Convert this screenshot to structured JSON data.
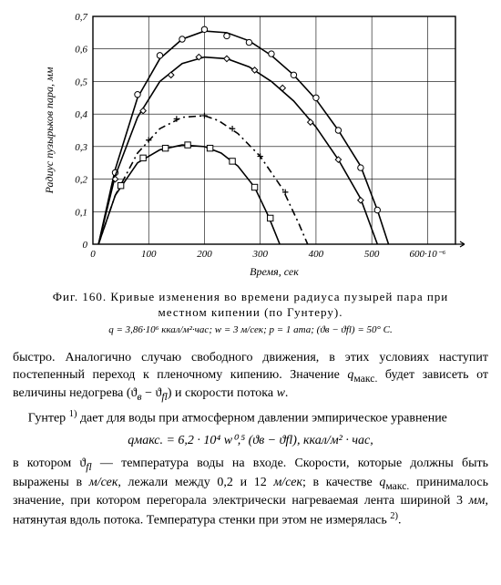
{
  "chart": {
    "type": "line",
    "background_color": "#ffffff",
    "axis_color": "#000000",
    "grid_color": "#000000",
    "series_color": "#000000",
    "marker_color": "#ffffff",
    "marker_stroke": "#000000",
    "line_width": 1.6,
    "marker_radius": 3.2,
    "x": {
      "label": "Время, сек",
      "min": 0,
      "max": 650,
      "ticks": [
        0,
        100,
        200,
        300,
        400,
        500,
        600
      ],
      "tick_labels": [
        "0",
        "100",
        "200",
        "300",
        "400",
        "500",
        "600·10⁻⁶"
      ]
    },
    "y": {
      "label": "Радиус пузырьков пара, мм",
      "min": 0,
      "max": 0.7,
      "ticks": [
        0,
        0.1,
        0.2,
        0.3,
        0.4,
        0.5,
        0.6,
        0.7
      ],
      "tick_labels": [
        "0",
        "0,1",
        "0,2",
        "0,3",
        "0,4",
        "0,5",
        "0,6",
        "0,7"
      ]
    },
    "series": [
      {
        "name": "curve-1",
        "style": "solid",
        "marker": "circle",
        "points": [
          [
            10,
            0.0
          ],
          [
            40,
            0.23
          ],
          [
            80,
            0.45
          ],
          [
            120,
            0.57
          ],
          [
            160,
            0.63
          ],
          [
            200,
            0.655
          ],
          [
            240,
            0.65
          ],
          [
            280,
            0.625
          ],
          [
            320,
            0.58
          ],
          [
            360,
            0.52
          ],
          [
            400,
            0.445
          ],
          [
            440,
            0.35
          ],
          [
            480,
            0.24
          ],
          [
            510,
            0.105
          ],
          [
            530,
            0.0
          ]
        ],
        "markers": [
          [
            40,
            0.22
          ],
          [
            80,
            0.46
          ],
          [
            120,
            0.58
          ],
          [
            160,
            0.63
          ],
          [
            200,
            0.66
          ],
          [
            240,
            0.64
          ],
          [
            280,
            0.62
          ],
          [
            320,
            0.585
          ],
          [
            360,
            0.52
          ],
          [
            400,
            0.45
          ],
          [
            440,
            0.35
          ],
          [
            480,
            0.235
          ],
          [
            510,
            0.105
          ]
        ]
      },
      {
        "name": "curve-2",
        "style": "solid",
        "marker": "diamond",
        "points": [
          [
            10,
            0.0
          ],
          [
            40,
            0.21
          ],
          [
            80,
            0.39
          ],
          [
            120,
            0.5
          ],
          [
            160,
            0.555
          ],
          [
            200,
            0.575
          ],
          [
            240,
            0.57
          ],
          [
            280,
            0.545
          ],
          [
            320,
            0.5
          ],
          [
            360,
            0.44
          ],
          [
            400,
            0.36
          ],
          [
            440,
            0.26
          ],
          [
            480,
            0.14
          ],
          [
            510,
            0.0
          ]
        ],
        "markers": [
          [
            40,
            0.2
          ],
          [
            90,
            0.41
          ],
          [
            140,
            0.52
          ],
          [
            190,
            0.575
          ],
          [
            240,
            0.57
          ],
          [
            290,
            0.535
          ],
          [
            340,
            0.48
          ],
          [
            390,
            0.375
          ],
          [
            440,
            0.26
          ],
          [
            480,
            0.135
          ]
        ]
      },
      {
        "name": "curve-3",
        "style": "dashdot",
        "marker": "plus",
        "points": [
          [
            10,
            0.0
          ],
          [
            40,
            0.15
          ],
          [
            80,
            0.28
          ],
          [
            120,
            0.355
          ],
          [
            160,
            0.39
          ],
          [
            200,
            0.395
          ],
          [
            225,
            0.38
          ],
          [
            260,
            0.34
          ],
          [
            300,
            0.27
          ],
          [
            340,
            0.17
          ],
          [
            370,
            0.06
          ],
          [
            385,
            0.0
          ]
        ],
        "markers": [
          [
            50,
            0.18
          ],
          [
            100,
            0.32
          ],
          [
            150,
            0.385
          ],
          [
            200,
            0.395
          ],
          [
            250,
            0.355
          ],
          [
            300,
            0.27
          ],
          [
            345,
            0.16
          ]
        ]
      },
      {
        "name": "curve-4",
        "style": "solid",
        "marker": "square",
        "points": [
          [
            10,
            0.0
          ],
          [
            40,
            0.15
          ],
          [
            80,
            0.25
          ],
          [
            120,
            0.29
          ],
          [
            160,
            0.305
          ],
          [
            200,
            0.3
          ],
          [
            230,
            0.28
          ],
          [
            260,
            0.24
          ],
          [
            290,
            0.175
          ],
          [
            315,
            0.085
          ],
          [
            335,
            0.0
          ]
        ],
        "markers": [
          [
            50,
            0.18
          ],
          [
            90,
            0.265
          ],
          [
            130,
            0.295
          ],
          [
            170,
            0.305
          ],
          [
            210,
            0.295
          ],
          [
            250,
            0.255
          ],
          [
            290,
            0.175
          ],
          [
            318,
            0.08
          ]
        ]
      }
    ]
  },
  "caption": {
    "line1": "Фиг. 160. Кривые изменения во времени радиуса пузырей пара при местном кипении (по Гунтеру).",
    "line2": "q = 3,86·10⁶ ккал/м²·час;  w = 3 м/сек;  p = 1 ата; (ϑв − ϑfl) = 50° C."
  },
  "text": {
    "p1a": "быстро. Аналогично случаю свободного движения, в этих условиях наступит постепенный переход к пленочному кипению. Значение ",
    "p1b_i": "q",
    "p1b_sub": "макс.",
    "p1c": " будет зависеть от величины недогрева (ϑ",
    "p1d_i": "в",
    "p1e": " − ϑ",
    "p1f_i": "fl",
    "p1g": ") и скорости потока ",
    "p1h_i": "w",
    "p1i": ".",
    "p2a": "Гунтер ",
    "p2sup": "1)",
    "p2b": " дает для воды при атмосферном давлении эмпирическое уравнение",
    "eq": "qмакс. = 6,2 · 10⁴ w⁰,⁵ (ϑв − ϑfl),  ккал/м² · час,",
    "p3a": "в котором ϑ",
    "p3a_i": "fl",
    "p3b": " — температура воды на входе. Скорости, которые должны быть выражены в ",
    "p3c_i": "м/сек",
    "p3d": ", лежали между 0,2 и 12 ",
    "p3e_i": "м/сек",
    "p3f": "; в качестве ",
    "p3g_i": "q",
    "p3g_sub": "макс.",
    "p3h": " принималось значение, при котором перегорала электрически нагреваемая лента шириной 3 ",
    "p3i_i": "мм",
    "p3j": ", натянутая вдоль потока. Температура стенки при этом не измерялась ",
    "p3sup": "2)",
    "p3k": "."
  }
}
